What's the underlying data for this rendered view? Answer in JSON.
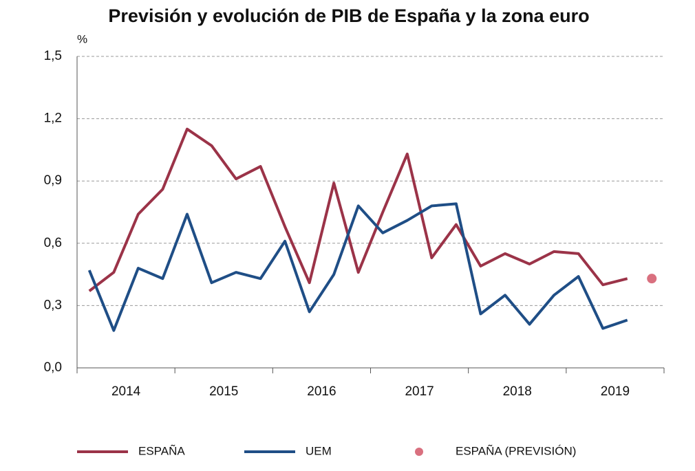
{
  "chart_data": {
    "type": "line",
    "title": "Previsión y evolución de PIB de España y la zona euro",
    "y_unit": "%",
    "categories": [
      null,
      null,
      null,
      null,
      null,
      null,
      null,
      null,
      null,
      null,
      null,
      null,
      null,
      null,
      null,
      null,
      null,
      null,
      null,
      null,
      null,
      null,
      null,
      null
    ],
    "year_labels": [
      "2014",
      "2015",
      "2016",
      "2017",
      "2018",
      "2019"
    ],
    "series": [
      {
        "name": "ESPAÑA",
        "color": "#9b3348",
        "kind": "line",
        "values": [
          0.37,
          0.46,
          0.74,
          0.86,
          1.15,
          1.07,
          0.91,
          0.97,
          0.68,
          0.41,
          0.89,
          0.46,
          0.75,
          1.03,
          0.53,
          0.69,
          0.49,
          0.55,
          0.5,
          0.56,
          0.55,
          0.4,
          0.43,
          null
        ]
      },
      {
        "name": "UEM",
        "color": "#1f4e86",
        "kind": "line",
        "values": [
          0.47,
          0.18,
          0.48,
          0.43,
          0.74,
          0.41,
          0.46,
          0.43,
          0.61,
          0.27,
          0.45,
          0.78,
          0.65,
          0.71,
          0.78,
          0.79,
          0.26,
          0.35,
          0.21,
          0.35,
          0.44,
          0.19,
          0.23,
          null
        ]
      },
      {
        "name": "ESPAÑA (PREVISIÓN)",
        "color": "#d9707f",
        "kind": "dot",
        "values": [
          null,
          null,
          null,
          null,
          null,
          null,
          null,
          null,
          null,
          null,
          null,
          null,
          null,
          null,
          null,
          null,
          null,
          null,
          null,
          null,
          null,
          null,
          null,
          0.43
        ]
      }
    ],
    "ylim": [
      0,
      1.5
    ],
    "yticks": [
      {
        "value": 0,
        "label": "0,0"
      },
      {
        "value": 0.3,
        "label": "0,3"
      },
      {
        "value": 0.6,
        "label": "0,6"
      },
      {
        "value": 0.9,
        "label": "0,9"
      },
      {
        "value": 1.2,
        "label": "1,2"
      },
      {
        "value": 1.5,
        "label": "1,5"
      }
    ],
    "grid": true,
    "legend": "bottom"
  }
}
